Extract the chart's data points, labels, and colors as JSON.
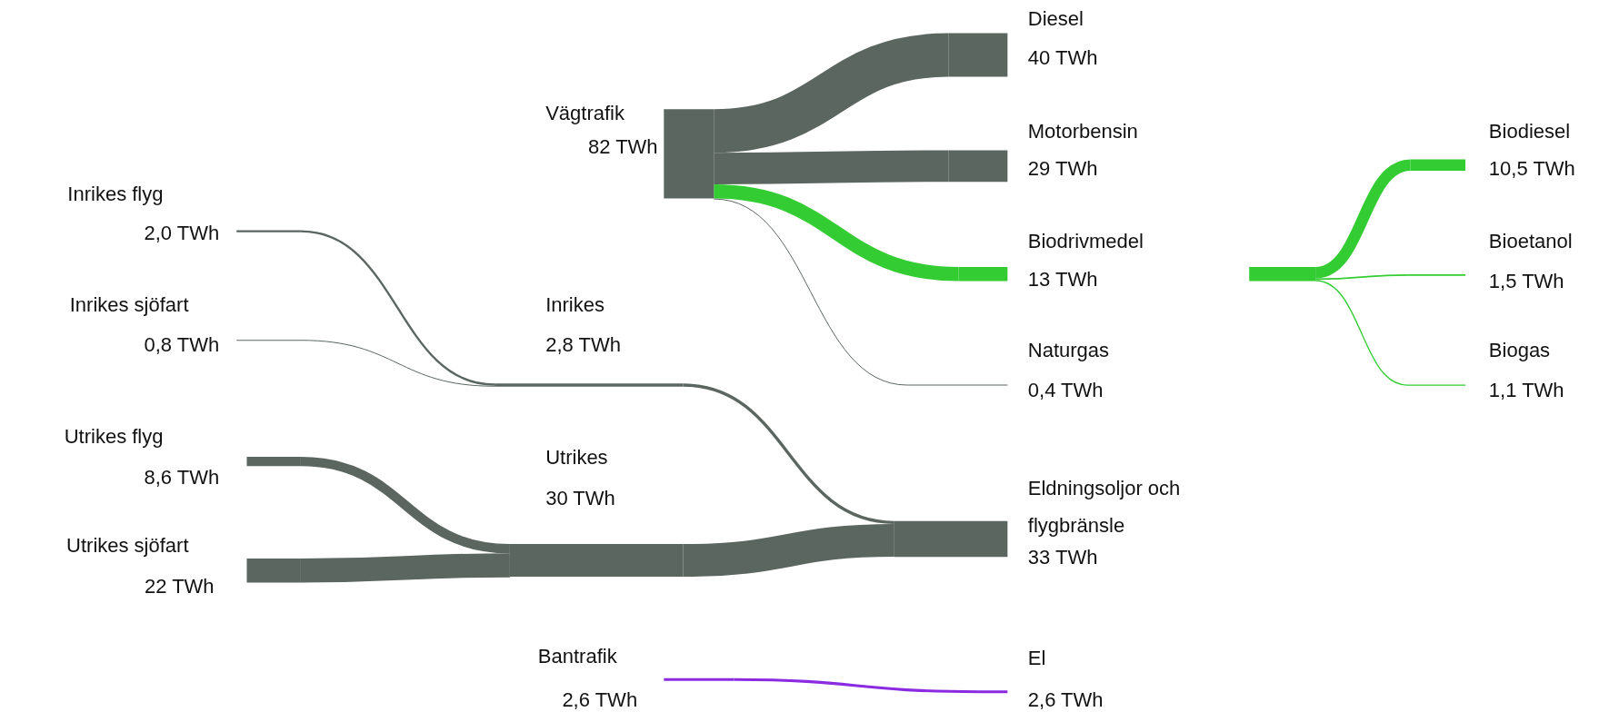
{
  "chart_data": {
    "type": "other",
    "categories": [
      "Inrikes flyg",
      "Inrikes sjöfart",
      "Utrikes flyg",
      "Utrikes sjöfart",
      "Inrikes",
      "Utrikes",
      "Vägtrafik",
      "Bantrafik",
      "Diesel",
      "Motorbensin",
      "Biodrivmedel",
      "Naturgas",
      "Eldningsoljor och flygbränsle",
      "El",
      "Biodiesel",
      "Bioetanol",
      "Biogas"
    ],
    "values": [
      2.0,
      0.8,
      8.6,
      22,
      2.8,
      30,
      82,
      2.6,
      40,
      29,
      13,
      0.4,
      33,
      2.6,
      10.5,
      1.5,
      1.1
    ],
    "value_labels": [
      "2,0 TWh",
      "0,8 TWh",
      "8,6 TWh",
      "22 TWh",
      "2,8 TWh",
      "30 TWh",
      "82 TWh",
      "2,6 TWh",
      "40 TWh",
      "29 TWh",
      "13 TWh",
      "0,4 TWh",
      "33 TWh",
      "2,6 TWh",
      "10,5 TWh",
      "1,5 TWh",
      "1,1 TWh"
    ],
    "colors": [
      "#5b6660",
      "#5b6660",
      "#5b6660",
      "#5b6660",
      "#5b6660",
      "#5b6660",
      "#5b6660",
      "#8a2be2",
      "#5b6660",
      "#5b6660",
      "#33cc33",
      "#5b6660",
      "#5b6660",
      "#8a2be2",
      "#33cc33",
      "#33cc33",
      "#33cc33"
    ]
  }
}
